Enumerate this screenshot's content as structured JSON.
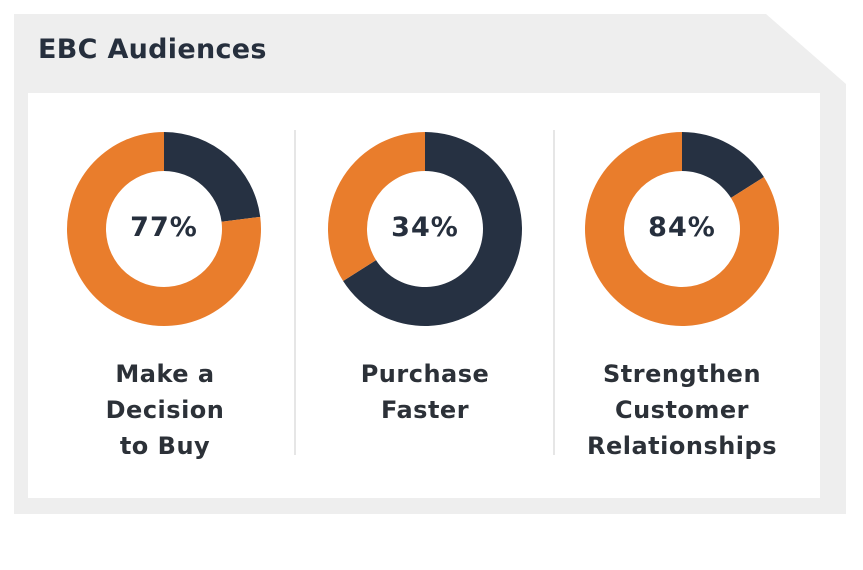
{
  "title": "EBC Audiences",
  "colors": {
    "highlight": "#e97d2c",
    "remainder": "#263142",
    "text": "#262f3d"
  },
  "chart_data": {
    "type": "pie",
    "title": "EBC Audiences",
    "items": [
      {
        "value": 77,
        "value_label": "77%",
        "label_lines": [
          "Make a",
          "Decision",
          "to Buy"
        ]
      },
      {
        "value": 34,
        "value_label": "34%",
        "label_lines": [
          "Purchase",
          "Faster"
        ]
      },
      {
        "value": 84,
        "value_label": "84%",
        "label_lines": [
          "Strengthen",
          "Customer",
          "Relationships"
        ]
      }
    ]
  }
}
